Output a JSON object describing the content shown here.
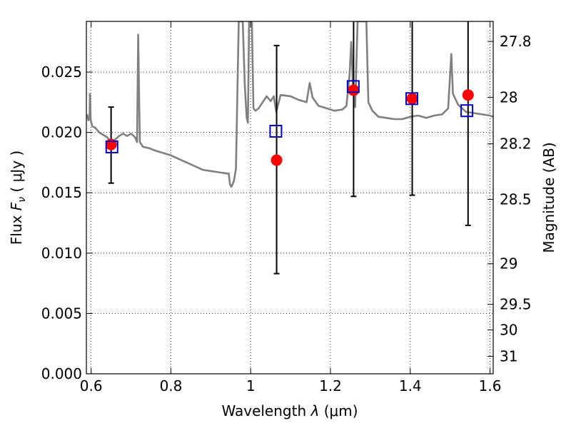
{
  "chart_data": {
    "type": "scatter",
    "xlabel_text": "Wavelength",
    "xlabel_symbol": "λ",
    "xlabel_unit": "(μm)",
    "ylabel_text": "Flux",
    "ylabel_symbol": "F",
    "ylabel_subscript": "ν",
    "ylabel_unit": "( μJy )",
    "y2label": "Magnitude (AB)",
    "xlim": [
      0.588,
      1.608
    ],
    "ylim": [
      0.0,
      0.0292
    ],
    "grid": true,
    "x_ticks": [
      {
        "value": 0.6,
        "label": "0.6"
      },
      {
        "value": 0.8,
        "label": "0.8"
      },
      {
        "value": 1.0,
        "label": "1"
      },
      {
        "value": 1.2,
        "label": "1.2"
      },
      {
        "value": 1.4,
        "label": "1.4"
      },
      {
        "value": 1.6,
        "label": "1.6"
      }
    ],
    "y_ticks": [
      {
        "value": 0.0,
        "label": "0.000"
      },
      {
        "value": 0.005,
        "label": "0.005"
      },
      {
        "value": 0.01,
        "label": "0.010"
      },
      {
        "value": 0.015,
        "label": "0.015"
      },
      {
        "value": 0.02,
        "label": "0.020"
      },
      {
        "value": 0.025,
        "label": "0.025"
      }
    ],
    "mag_ticks": [
      {
        "mag": 27.8,
        "label": "27.8"
      },
      {
        "mag": 28.0,
        "label": "28"
      },
      {
        "mag": 28.2,
        "label": "28.2"
      },
      {
        "mag": 28.5,
        "label": "28.5"
      },
      {
        "mag": 29.0,
        "label": "29"
      },
      {
        "mag": 29.5,
        "label": "29.5"
      },
      {
        "mag": 30.0,
        "label": "30"
      },
      {
        "mag": 31.0,
        "label": "31"
      }
    ],
    "model_spectrum": {
      "color": "#808080",
      "points": [
        [
          0.59,
          0.0215
        ],
        [
          0.593,
          0.021
        ],
        [
          0.596,
          0.0212
        ],
        [
          0.597,
          0.0232
        ],
        [
          0.599,
          0.021
        ],
        [
          0.603,
          0.0205
        ],
        [
          0.61,
          0.0204
        ],
        [
          0.62,
          0.02
        ],
        [
          0.63,
          0.0198
        ],
        [
          0.64,
          0.0196
        ],
        [
          0.65,
          0.0192
        ],
        [
          0.66,
          0.0194
        ],
        [
          0.67,
          0.0197
        ],
        [
          0.68,
          0.0199
        ],
        [
          0.69,
          0.0197
        ],
        [
          0.7,
          0.0199
        ],
        [
          0.71,
          0.0196
        ],
        [
          0.715,
          0.0192
        ],
        [
          0.718,
          0.0281
        ],
        [
          0.722,
          0.0192
        ],
        [
          0.73,
          0.0188
        ],
        [
          0.745,
          0.0187
        ],
        [
          0.76,
          0.0185
        ],
        [
          0.78,
          0.0183
        ],
        [
          0.8,
          0.0181
        ],
        [
          0.82,
          0.0178
        ],
        [
          0.84,
          0.0175
        ],
        [
          0.86,
          0.0172
        ],
        [
          0.88,
          0.0169
        ],
        [
          0.9,
          0.0168
        ],
        [
          0.92,
          0.0167
        ],
        [
          0.94,
          0.0166
        ],
        [
          0.945,
          0.0166
        ],
        [
          0.948,
          0.0157
        ],
        [
          0.952,
          0.0155
        ],
        [
          0.958,
          0.016
        ],
        [
          0.963,
          0.017
        ],
        [
          0.967,
          0.024
        ],
        [
          0.97,
          0.0292
        ],
        [
          0.98,
          0.0292
        ],
        [
          0.985,
          0.024
        ],
        [
          0.99,
          0.0212
        ],
        [
          0.993,
          0.0208
        ],
        [
          0.996,
          0.0292
        ],
        [
          1.003,
          0.0292
        ],
        [
          1.007,
          0.022
        ],
        [
          1.012,
          0.0218
        ],
        [
          1.02,
          0.022
        ],
        [
          1.03,
          0.0225
        ],
        [
          1.04,
          0.023
        ],
        [
          1.05,
          0.0226
        ],
        [
          1.058,
          0.023
        ],
        [
          1.064,
          0.0217
        ],
        [
          1.075,
          0.0231
        ],
        [
          1.1,
          0.023
        ],
        [
          1.12,
          0.0227
        ],
        [
          1.14,
          0.0225
        ],
        [
          1.148,
          0.0241
        ],
        [
          1.155,
          0.0229
        ],
        [
          1.17,
          0.0222
        ],
        [
          1.19,
          0.022
        ],
        [
          1.21,
          0.0218
        ],
        [
          1.23,
          0.0219
        ],
        [
          1.24,
          0.0222
        ],
        [
          1.248,
          0.0248
        ],
        [
          1.252,
          0.0275
        ],
        [
          1.256,
          0.024
        ],
        [
          1.262,
          0.0221
        ],
        [
          1.268,
          0.0292
        ],
        [
          1.29,
          0.0292
        ],
        [
          1.295,
          0.0225
        ],
        [
          1.305,
          0.0218
        ],
        [
          1.32,
          0.0213
        ],
        [
          1.34,
          0.0212
        ],
        [
          1.36,
          0.0211
        ],
        [
          1.38,
          0.0211
        ],
        [
          1.4,
          0.0213
        ],
        [
          1.42,
          0.0214
        ],
        [
          1.44,
          0.0212
        ],
        [
          1.46,
          0.0214
        ],
        [
          1.48,
          0.0215
        ],
        [
          1.495,
          0.022
        ],
        [
          1.503,
          0.0265
        ],
        [
          1.507,
          0.0232
        ],
        [
          1.52,
          0.0223
        ],
        [
          1.54,
          0.0217
        ],
        [
          1.56,
          0.0216
        ],
        [
          1.58,
          0.0215
        ],
        [
          1.6,
          0.0214
        ],
        [
          1.608,
          0.0213
        ]
      ]
    },
    "observed": {
      "color": "#ff0000",
      "points": [
        {
          "x": 0.65,
          "y": 0.019,
          "yerr_low": 0.0158,
          "yerr_high": 0.0221
        },
        {
          "x": 1.065,
          "y": 0.0177,
          "yerr_low": 0.0083,
          "yerr_high": 0.0272
        },
        {
          "x": 1.258,
          "y": 0.0235,
          "yerr_low": 0.0147,
          "yerr_high": 0.0292
        },
        {
          "x": 1.405,
          "y": 0.0228,
          "yerr_low": 0.0148,
          "yerr_high": 0.0292
        },
        {
          "x": 1.545,
          "y": 0.0231,
          "yerr_low": 0.0123,
          "yerr_high": 0.0292
        }
      ]
    },
    "model_photometry": {
      "color": "#0000cc",
      "points": [
        {
          "x": 0.652,
          "y": 0.0188
        },
        {
          "x": 1.063,
          "y": 0.0201
        },
        {
          "x": 1.257,
          "y": 0.0238
        },
        {
          "x": 1.404,
          "y": 0.0228
        },
        {
          "x": 1.542,
          "y": 0.0218
        }
      ]
    }
  }
}
